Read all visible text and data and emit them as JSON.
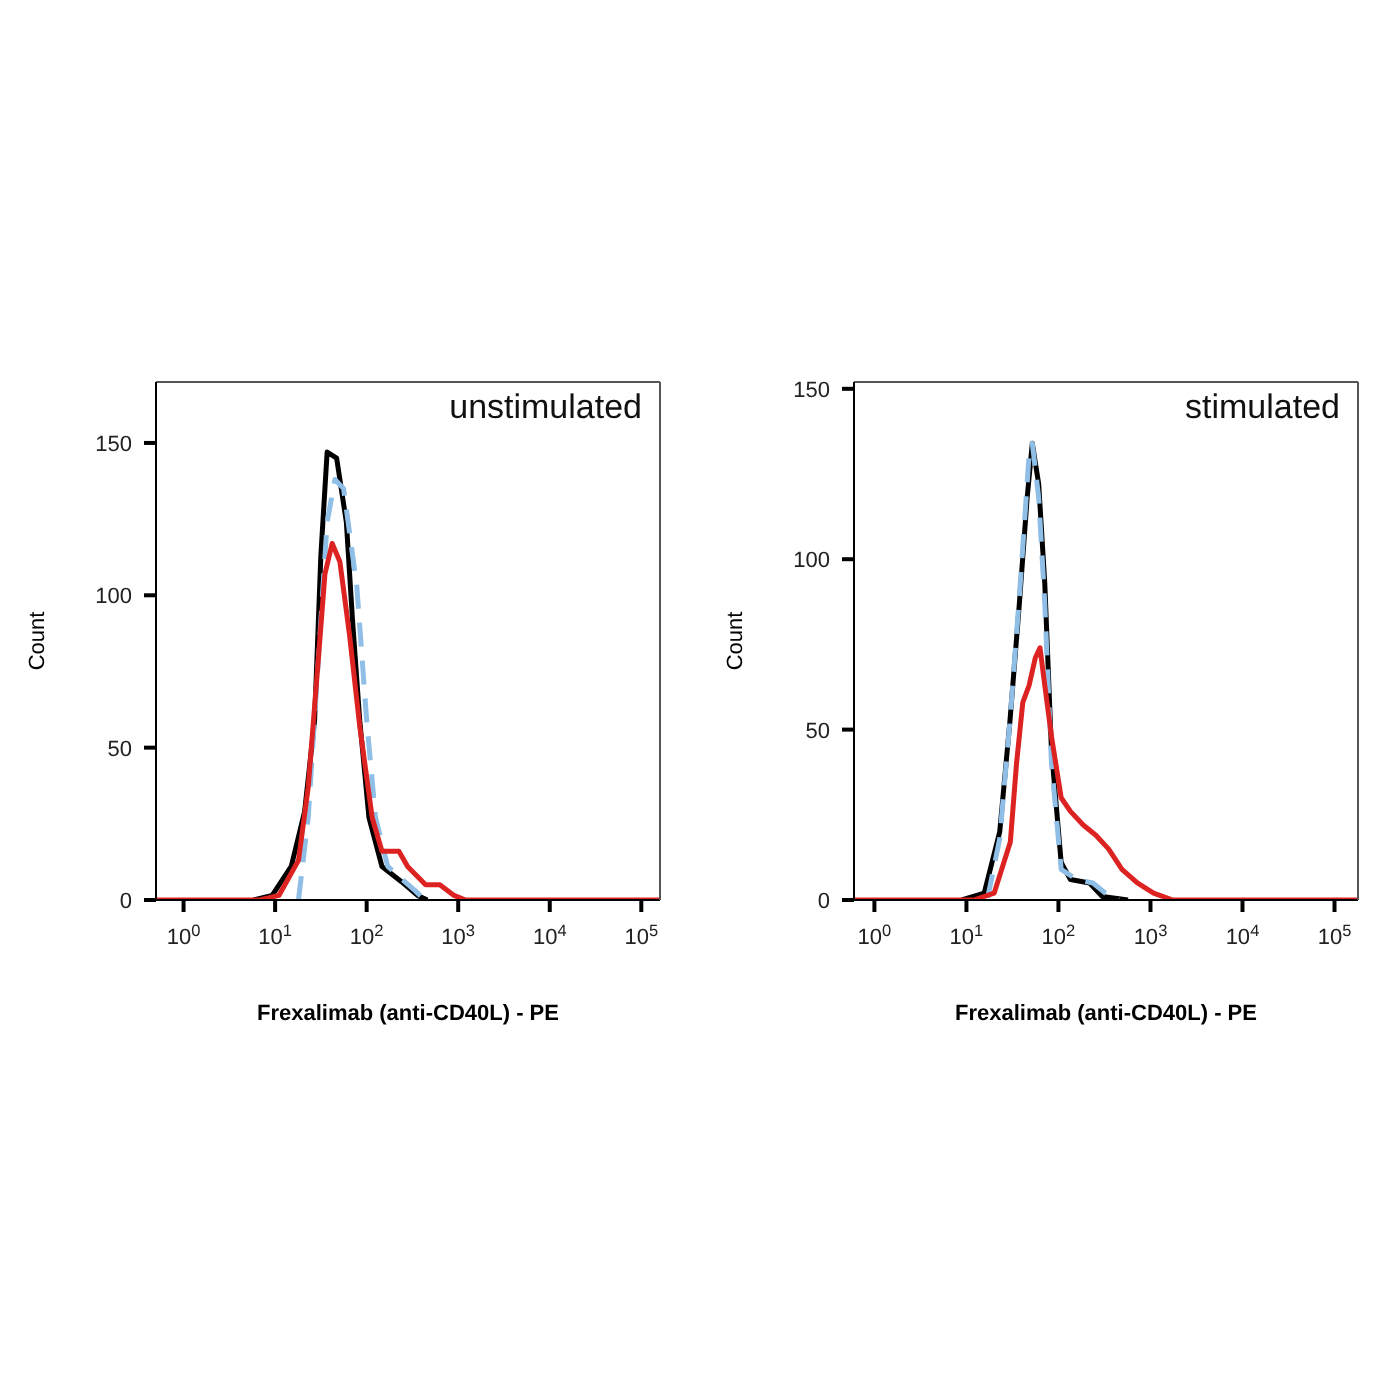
{
  "chart_data": [
    {
      "type": "line",
      "annotations": [
        "unstimulated"
      ],
      "xlabel": "Frexalimab (anti-CD40L) - PE",
      "ylabel": "Count",
      "log": "x",
      "marker": "none",
      "xlim": [
        0.5,
        160000
      ],
      "ylim": [
        0,
        170
      ],
      "xticks": [
        {
          "value": 1,
          "label": "10$^{0}$"
        },
        {
          "value": 10,
          "label": "10$^{1}$"
        },
        {
          "value": 100,
          "label": "10$^{2}$"
        },
        {
          "value": 1000,
          "label": "10$^{3}$"
        },
        {
          "value": 10000,
          "label": "10$^{4}$"
        },
        {
          "value": 100000,
          "label": "10$^{5}$"
        }
      ],
      "yticks": [
        0,
        50,
        100,
        150
      ],
      "series": [
        {
          "color": "#000000",
          "line_style": "solid",
          "x": [
            5.8,
            9.3,
            15,
            21,
            27,
            31.6,
            37,
            47,
            60,
            70,
            84,
            106,
            147,
            240,
            360,
            460
          ],
          "values": [
            0,
            1.5,
            11,
            29,
            59,
            113,
            147,
            145,
            124,
            92,
            59,
            27,
            11,
            6,
            1.5,
            0
          ]
        },
        {
          "color": "#8fbfe6",
          "line_style": "dashed",
          "x": [
            18,
            23,
            30,
            37,
            45,
            56,
            78,
            100,
            125,
            170,
            240,
            340,
            430
          ],
          "values": [
            0,
            27,
            81,
            124,
            138,
            135,
            103,
            59,
            27,
            11,
            7,
            3,
            0
          ]
        },
        {
          "color": "#dd2222",
          "line_style": "solid",
          "x": [
            0.5,
            6.8,
            11,
            18,
            23,
            30,
            35,
            42,
            51,
            65,
            84,
            115,
            147,
            225,
            280,
            440,
            630,
            900,
            1200,
            160000
          ],
          "values": [
            0,
            0,
            1.5,
            13,
            37,
            81,
            107,
            117,
            111,
            87,
            57,
            27,
            16,
            16,
            11,
            5,
            5,
            1.5,
            0,
            0
          ]
        }
      ]
    },
    {
      "type": "line",
      "annotations": [
        "stimulated"
      ],
      "xlabel": "Frexalimab (anti-CD40L) - PE",
      "ylabel": "Count",
      "log": "x",
      "marker": "none",
      "xlim": [
        0.6,
        180000
      ],
      "ylim": [
        0,
        152
      ],
      "xticks": [
        {
          "value": 1,
          "label": "10$^{0}$"
        },
        {
          "value": 10,
          "label": "10$^{1}$"
        },
        {
          "value": 100,
          "label": "10$^{2}$"
        },
        {
          "value": 1000,
          "label": "10$^{3}$"
        },
        {
          "value": 10000,
          "label": "10$^{4}$"
        },
        {
          "value": 100000,
          "label": "10$^{5}$"
        }
      ],
      "yticks": [
        0,
        50,
        100,
        150
      ],
      "series": [
        {
          "color": "#000000",
          "line_style": "solid",
          "x": [
            8.9,
            15.6,
            23,
            29.6,
            37.6,
            45.7,
            52,
            61,
            71,
            84,
            107,
            135,
            218,
            300,
            570
          ],
          "values": [
            0,
            2,
            20,
            52,
            87,
            118,
            134,
            122,
            93,
            44,
            11,
            6,
            5,
            1,
            0
          ]
        },
        {
          "color": "#8fbfe6",
          "line_style": "dashed",
          "x": [
            17,
            23,
            29.6,
            37.6,
            47.8,
            52,
            61,
            71,
            84,
            107,
            158,
            237,
            325,
            450
          ],
          "values": [
            0.6,
            18,
            52,
            89,
            130,
            134,
            118,
            87,
            40,
            9,
            6,
            5,
            2,
            0
          ]
        },
        {
          "color": "#dd2222",
          "line_style": "solid",
          "x": [
            0.6,
            12,
            20,
            30,
            35,
            41,
            48,
            56,
            63,
            71,
            84,
            107,
            135,
            186,
            255,
            350,
            490,
            720,
            1080,
            1750,
            180000
          ],
          "values": [
            0,
            0,
            2,
            17,
            40,
            58,
            63,
            71,
            74,
            63,
            48,
            30,
            26,
            22,
            19,
            15,
            9,
            5,
            2,
            0,
            0
          ]
        }
      ]
    }
  ]
}
